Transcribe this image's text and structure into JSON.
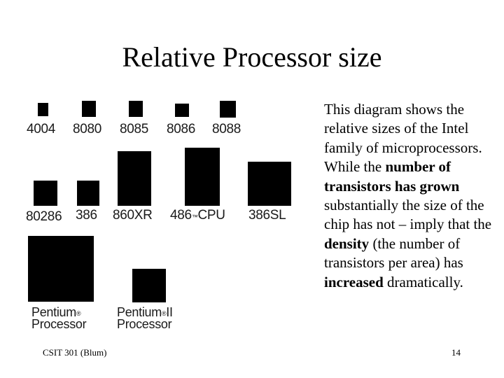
{
  "slide": {
    "title": "Relative Processor size",
    "footer_left": "CSIT 301 (Blum)",
    "page_number": "14"
  },
  "diagram": {
    "processors": [
      {
        "label": "4004"
      },
      {
        "label": "8080"
      },
      {
        "label": "8085"
      },
      {
        "label": "8086"
      },
      {
        "label": "8088"
      },
      {
        "label": "80286"
      },
      {
        "label": "386"
      },
      {
        "label": "860XR"
      },
      {
        "label": "486",
        "mark": "™",
        "suffix": "CPU"
      },
      {
        "label": "386SL"
      },
      {
        "label_line1": "Pentium",
        "mark": "®",
        "label_line2": "Processor"
      },
      {
        "label_line1": "Pentium",
        "mark": "®",
        "suffix": "II",
        "label_line2": "Processor"
      }
    ]
  },
  "description": {
    "t1": "This diagram shows the relative sizes of the Intel family of microprocessors. While the ",
    "b1": "number of transistors has grown",
    "t2": " substantially the size of the chip has not – imply that the ",
    "b2": "density",
    "t3": " (the number of transistors per area) has ",
    "b3": "increased",
    "t4": " dramatically."
  }
}
